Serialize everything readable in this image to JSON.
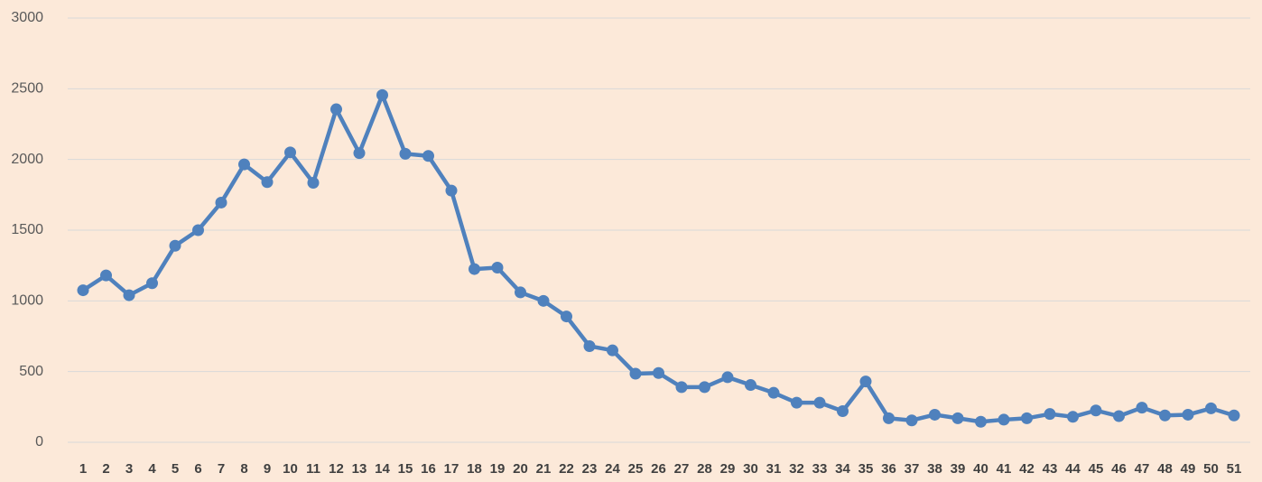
{
  "chart_data": {
    "type": "line",
    "categories": [
      "1",
      "2",
      "3",
      "4",
      "5",
      "6",
      "7",
      "8",
      "9",
      "10",
      "11",
      "12",
      "13",
      "14",
      "15",
      "16",
      "17",
      "18",
      "19",
      "20",
      "21",
      "22",
      "23",
      "24",
      "25",
      "26",
      "27",
      "28",
      "29",
      "30",
      "31",
      "32",
      "33",
      "34",
      "35",
      "36",
      "37",
      "38",
      "39",
      "40",
      "41",
      "42",
      "43",
      "44",
      "45",
      "46",
      "47",
      "48",
      "49",
      "50",
      "51"
    ],
    "series": [
      {
        "name": "",
        "color": "#4f81bd",
        "values": [
          1075,
          1180,
          1040,
          1125,
          1390,
          1500,
          1695,
          1965,
          1840,
          2050,
          1835,
          2355,
          2045,
          2455,
          2040,
          2025,
          1780,
          1225,
          1235,
          1060,
          1000,
          890,
          680,
          650,
          485,
          490,
          390,
          390,
          460,
          405,
          350,
          280,
          280,
          220,
          430,
          170,
          155,
          195,
          170,
          145,
          160,
          170,
          200,
          180,
          225,
          185,
          245,
          190,
          195,
          240,
          190
        ]
      }
    ],
    "ylim": [
      0,
      3000
    ],
    "yticks": [
      0,
      500,
      1000,
      1500,
      2000,
      2500,
      3000
    ],
    "grid": true
  }
}
